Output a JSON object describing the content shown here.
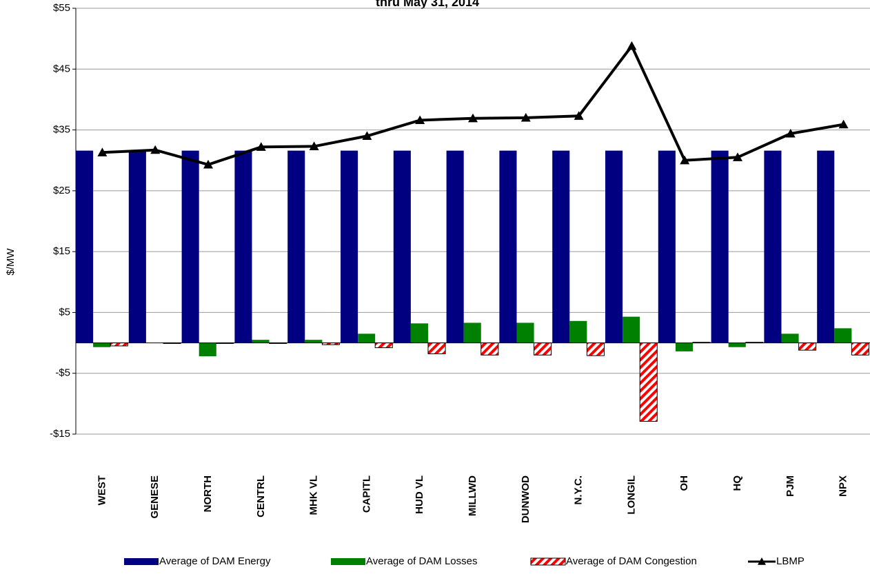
{
  "chart_data": {
    "type": "bar-line",
    "title": "thru May 31, 2014",
    "y_label": "$/MW",
    "categories": [
      "WEST",
      "GENESE",
      "NORTH",
      "CENTRL",
      "MHK VL",
      "CAPITL",
      "HUD VL",
      "MILLWD",
      "DUNWOD",
      "N.Y.C.",
      "LONGIL",
      "OH",
      "HQ",
      "PJM",
      "NPX"
    ],
    "series": [
      {
        "name": "Average of DAM Energy",
        "type": "bar",
        "color": "#000080",
        "values": [
          31.6,
          31.6,
          31.6,
          31.6,
          31.6,
          31.6,
          31.6,
          31.6,
          31.6,
          31.6,
          31.6,
          31.6,
          31.6,
          31.6,
          31.6
        ]
      },
      {
        "name": "Average of DAM Losses",
        "type": "bar",
        "color": "#008000",
        "values": [
          -0.7,
          0,
          -2.2,
          0.5,
          0.5,
          1.5,
          3.2,
          3.3,
          3.3,
          3.6,
          4.3,
          -1.4,
          -0.7,
          1.5,
          2.4
        ]
      },
      {
        "name": "Average of DAM Congestion",
        "type": "bar",
        "color": "#ff0000",
        "pattern": "hatch",
        "values": [
          -0.5,
          -0.1,
          -0.1,
          -0.1,
          -0.3,
          -0.8,
          -1.8,
          -2.0,
          -2.0,
          -2.1,
          -12.9,
          0.1,
          0.1,
          -1.2,
          -2.0
        ]
      },
      {
        "name": "LBMP",
        "type": "line",
        "color": "#000000",
        "marker": "triangle",
        "values": [
          31.3,
          31.7,
          29.3,
          32.2,
          32.3,
          34.0,
          36.6,
          36.9,
          37.0,
          37.3,
          48.8,
          30.0,
          30.5,
          34.4,
          35.9
        ]
      }
    ],
    "ylim": [
      -15,
      55
    ],
    "yticks": [
      {
        "value": -15,
        "label": "-$15"
      },
      {
        "value": -5,
        "label": "-$5"
      },
      {
        "value": 5,
        "label": "$5"
      },
      {
        "value": 15,
        "label": "$15"
      },
      {
        "value": 25,
        "label": "$25"
      },
      {
        "value": 35,
        "label": "$35"
      },
      {
        "value": 45,
        "label": "$45"
      },
      {
        "value": 55,
        "label": "$55"
      }
    ],
    "grid": true,
    "legend": "bottom"
  }
}
